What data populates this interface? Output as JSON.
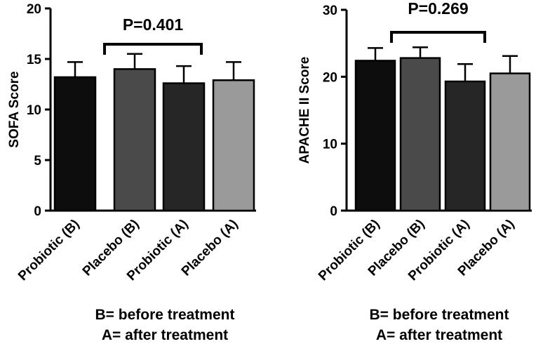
{
  "chart_data": [
    {
      "type": "bar",
      "ylabel": "SOFA Score",
      "ylim": [
        0,
        20
      ],
      "yticks": [
        "0",
        "5",
        "10",
        "15",
        "20"
      ],
      "categories": [
        "Probiotic (B)",
        "Placebo (B)",
        "Probiotic (A)",
        "Placebo (A)"
      ],
      "values": [
        13.2,
        14.0,
        12.6,
        12.9
      ],
      "errors": [
        1.5,
        1.5,
        1.7,
        1.8
      ],
      "colors": [
        "#0d0d0d",
        "#4a4a4a",
        "#262626",
        "#9a9a9a"
      ],
      "p_value": "P=0.401",
      "legend": [
        "B= before treatment",
        "A= after treatment"
      ]
    },
    {
      "type": "bar",
      "ylabel": "APACHE II Score",
      "ylim": [
        0,
        30
      ],
      "yticks": [
        "0",
        "10",
        "20",
        "30"
      ],
      "categories": [
        "Probiotic (B)",
        "Placebo (B)",
        "Probiotic (A)",
        "Placebo (A)"
      ],
      "values": [
        22.4,
        22.8,
        19.3,
        20.5
      ],
      "errors": [
        1.9,
        1.6,
        2.6,
        2.6
      ],
      "colors": [
        "#0d0d0d",
        "#4a4a4a",
        "#262626",
        "#9a9a9a"
      ],
      "p_value": "P=0.269",
      "legend": [
        "B= before treatment",
        "A= after treatment"
      ]
    }
  ]
}
